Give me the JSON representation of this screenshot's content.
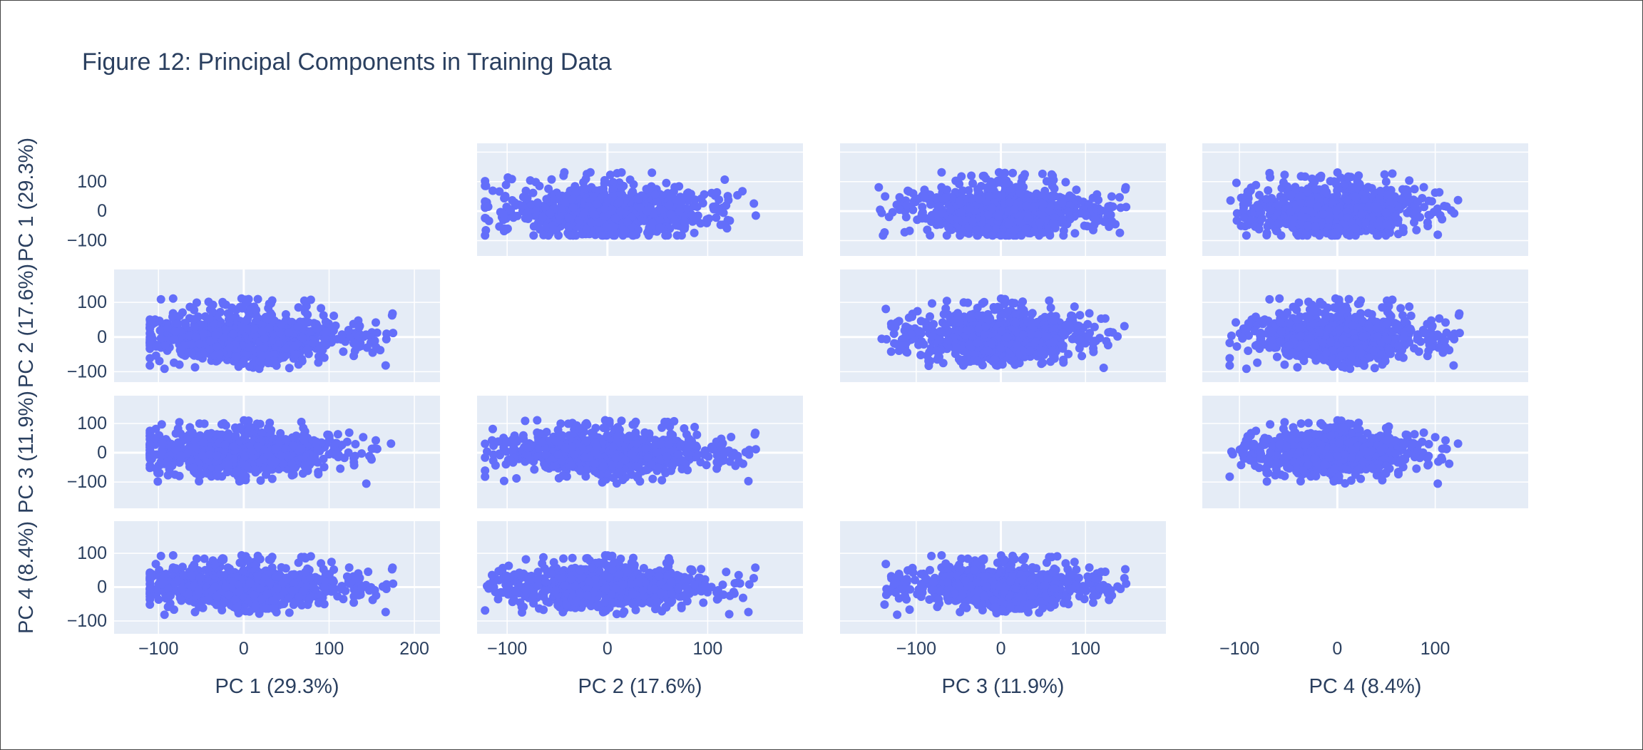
{
  "chart_data": {
    "type": "scatter",
    "title": "Figure 12: Principal Components in Training Data",
    "colors": {
      "marker": "#636efa",
      "plot_bg": "#e5ecf6",
      "grid": "#ffffff",
      "text": "#2a3f5f"
    },
    "grid": true,
    "legend": "none",
    "dimensions": [
      {
        "label": "PC 1 (29.3%)",
        "range": [
          -152,
          230
        ],
        "ticks": [
          -100,
          0,
          100,
          200
        ],
        "center": 0,
        "spreadNeg": 110,
        "spreadPos": 175,
        "height": 105
      },
      {
        "label": "PC 2 (17.6%)",
        "range": [
          -130,
          195
        ],
        "ticks": [
          -100,
          0,
          100
        ],
        "center": 0,
        "spreadNeg": 122,
        "spreadPos": 148,
        "height": 95
      },
      {
        "label": "PC 3 (11.9%)",
        "range": [
          -190,
          195
        ],
        "ticks": [
          -100,
          0,
          100
        ],
        "center": 0,
        "spreadNeg": 145,
        "spreadPos": 148,
        "height": 80
      },
      {
        "label": "PC 4 (8.4%)",
        "range": [
          -138,
          195
        ],
        "ticks": [
          -100,
          0,
          100
        ],
        "center": 0,
        "spreadNeg": 110,
        "spreadPos": 125,
        "height": 70
      }
    ],
    "matrix": "scatter matrix of PC 1–PC 4, diagonal panels empty"
  }
}
